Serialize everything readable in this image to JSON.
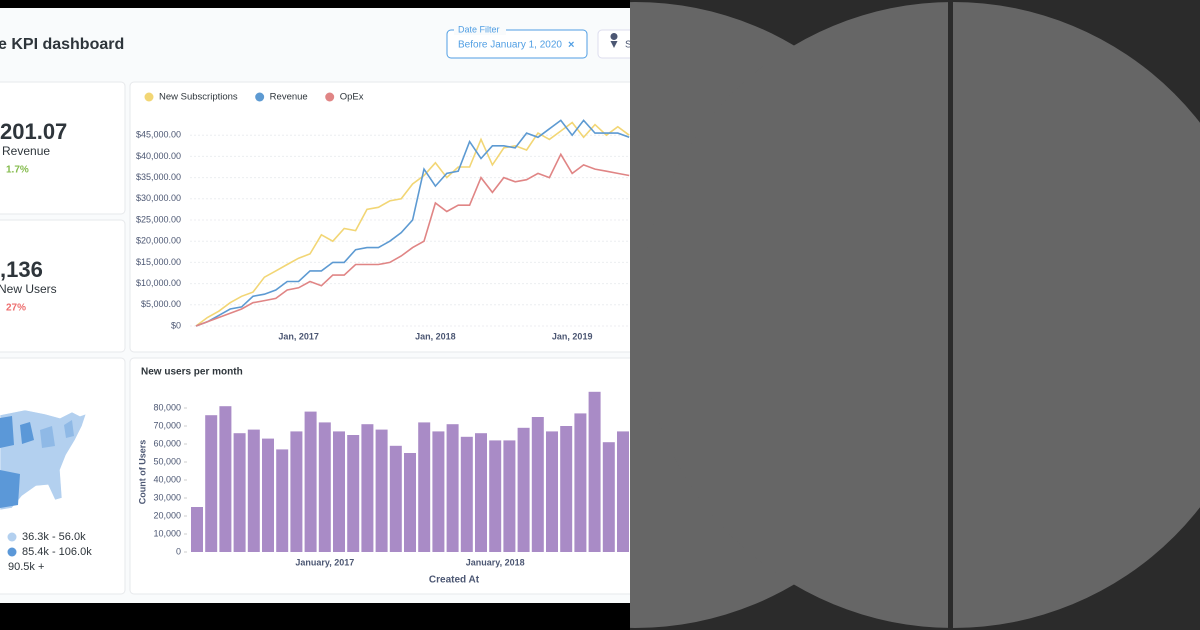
{
  "header": {
    "title": "e KPI dashboard",
    "date_filter": {
      "label": "Date Filter",
      "value": "Before January 1, 2020",
      "clear": "×"
    },
    "second_filter": "S"
  },
  "kpis": [
    {
      "value": "201.07",
      "label": "Revenue",
      "change": "1.7%",
      "color": "#84bb4c"
    },
    {
      "value": ",136",
      "label": "New Users",
      "change": "27%",
      "color": "#ed6e6e"
    }
  ],
  "map_legend": [
    {
      "label": "36.3k - 56.0k",
      "color": "#b3d0ef"
    },
    {
      "label": "85.4k - 106.0k",
      "color": "#5b98d8"
    },
    {
      "label": "90.5k +",
      "color": "#2f6fc0"
    }
  ],
  "line_chart": {
    "type": "line",
    "categories": [
      null,
      null,
      null,
      null,
      null,
      null,
      null,
      null,
      null,
      "Jan, 2017",
      null,
      null,
      null,
      null,
      null,
      null,
      null,
      null,
      null,
      null,
      null,
      "Jan, 2018",
      null,
      null,
      null,
      null,
      null,
      null,
      null,
      null,
      null,
      null,
      null,
      "Jan, 2019",
      null,
      null,
      null,
      null,
      null
    ],
    "series": [
      {
        "name": "New Subscriptions",
        "color": "#f2d675",
        "values": [
          0,
          2000,
          3500,
          5500,
          7000,
          8000,
          11500,
          13000,
          14500,
          16000,
          17000,
          21500,
          20000,
          23000,
          22500,
          27500,
          28000,
          29500,
          30000,
          33500,
          35500,
          38500,
          35000,
          37500,
          37500,
          44000,
          38000,
          42000,
          42500,
          41500,
          45500,
          44000,
          46000,
          48000,
          44500,
          47500,
          45000,
          47000,
          45000
        ]
      },
      {
        "name": "Revenue",
        "color": "#5d9ad2",
        "values": [
          0,
          1000,
          2500,
          4000,
          4500,
          7000,
          7500,
          8500,
          10500,
          10500,
          13000,
          13000,
          15000,
          15000,
          18000,
          18500,
          18500,
          20000,
          22000,
          25000,
          37000,
          33000,
          36000,
          36500,
          43500,
          39500,
          42500,
          42500,
          42000,
          45500,
          44500,
          46500,
          48500,
          45000,
          48500,
          45500,
          45500,
          45500,
          44500
        ]
      },
      {
        "name": "OpEx",
        "color": "#e08585",
        "values": [
          0,
          1000,
          2000,
          3000,
          4000,
          5500,
          6000,
          6500,
          8500,
          9000,
          10500,
          9500,
          12000,
          12000,
          14500,
          14500,
          14500,
          15000,
          16500,
          18500,
          20000,
          29000,
          27000,
          28500,
          28500,
          35000,
          31500,
          35000,
          34000,
          34500,
          36000,
          35000,
          40500,
          36000,
          38000,
          37000,
          36500,
          36000,
          35500
        ]
      }
    ],
    "ylim": [
      0,
      50000
    ],
    "yticks": [
      {
        "value": 0,
        "label": "$0"
      },
      {
        "value": 5000,
        "label": "$5,000.00"
      },
      {
        "value": 10000,
        "label": "$10,000.00"
      },
      {
        "value": 15000,
        "label": "$15,000.00"
      },
      {
        "value": 20000,
        "label": "$20,000.00"
      },
      {
        "value": 25000,
        "label": "$25,000.00"
      },
      {
        "value": 30000,
        "label": "$30,000.00"
      },
      {
        "value": 35000,
        "label": "$35,000.00"
      },
      {
        "value": 40000,
        "label": "$40,000.00"
      },
      {
        "value": 45000,
        "label": "$45,000.00"
      }
    ],
    "grid": true
  },
  "bar_chart": {
    "type": "bar",
    "title": "New users per month",
    "y_label": "Count of Users",
    "x_label": "Created At",
    "color": "#a98bc6",
    "categories": [
      null,
      null,
      null,
      null,
      null,
      null,
      null,
      null,
      null,
      "January, 2017",
      null,
      null,
      null,
      null,
      null,
      null,
      null,
      null,
      null,
      null,
      null,
      "January, 2018",
      null,
      null,
      null,
      null,
      null,
      null,
      null,
      null,
      null
    ],
    "values": [
      25000,
      76000,
      81000,
      66000,
      68000,
      63000,
      57000,
      67000,
      78000,
      72000,
      67000,
      65000,
      71000,
      68000,
      59000,
      55000,
      72000,
      67000,
      71000,
      64000,
      66000,
      62000,
      62000,
      69000,
      75000,
      67000,
      70000,
      77000,
      89000,
      61000,
      67000
    ],
    "ylim": [
      0,
      90000
    ],
    "yticks": [
      0,
      {
        "value": 10000,
        "label": "10,000"
      },
      {
        "value": 20000,
        "label": "20,000"
      },
      {
        "value": 30000,
        "label": "30,000"
      },
      {
        "value": 40000,
        "label": "40,000"
      },
      {
        "value": 50000,
        "label": "50,000"
      },
      {
        "value": 60000,
        "label": "60,000"
      },
      {
        "value": 70000,
        "label": "70,000"
      },
      {
        "value": 80000,
        "label": "80,000"
      }
    ]
  }
}
